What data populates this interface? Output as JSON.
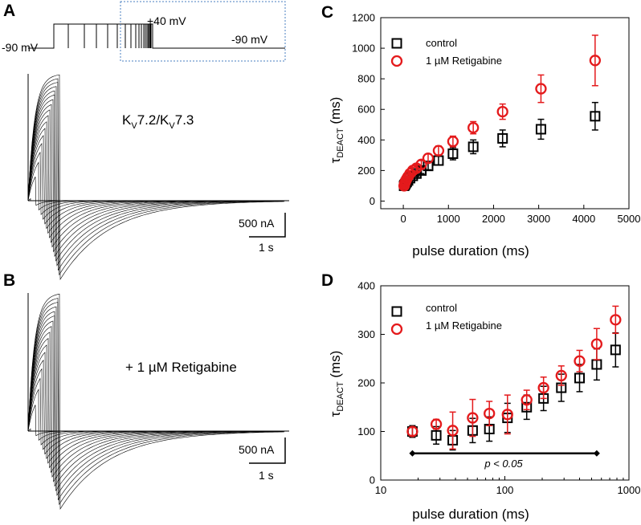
{
  "panels": {
    "a": {
      "letter": "A",
      "cell_line": "KV7.2/KV7.3",
      "cell_base1": "K",
      "cell_sub1": "V",
      "cell_mid": "7.2/K",
      "cell_sub2": "V",
      "cell_end": "7.3"
    },
    "b": {
      "letter": "B",
      "condition": "+ 1 µM Retigabine"
    },
    "c": {
      "letter": "C"
    },
    "d": {
      "letter": "D"
    }
  },
  "protocol": {
    "holding_left": "-90 mV",
    "step": "+40 mV",
    "holding_right": "-90 mV"
  },
  "scalebars": [
    {
      "current": "500 nA",
      "time": "1 s"
    },
    {
      "current": "500 nA",
      "time": "1 s"
    }
  ],
  "colors": {
    "control": "#000000",
    "retigabine": "#e41a1c",
    "inset_box": "#4a7fc1"
  },
  "chart_data": [
    {
      "panel": "C",
      "type": "scatter",
      "xlabel": "pulse duration (ms)",
      "ylabel": "τDEACT (ms)",
      "ylabel_base": "τ",
      "ylabel_sub": "DEACT",
      "ylabel_tail": " (ms)",
      "xlim": [
        -500,
        5000
      ],
      "ylim": [
        -50,
        1200
      ],
      "xticks": [
        0,
        1000,
        2000,
        3000,
        4000,
        5000
      ],
      "yticks": [
        0,
        200,
        400,
        600,
        800,
        1000,
        1200
      ],
      "xscale": "linear",
      "legend_position": "top-left",
      "series": [
        {
          "name": "control",
          "marker": "square",
          "color": "#000000",
          "x": [
            18,
            28,
            40,
            55,
            75,
            105,
            150,
            210,
            290,
            400,
            550,
            780,
            1100,
            1550,
            2200,
            3050,
            4250
          ],
          "y": [
            100,
            105,
            110,
            118,
            125,
            135,
            150,
            165,
            180,
            200,
            230,
            265,
            310,
            355,
            410,
            470,
            555
          ],
          "err": [
            10,
            10,
            10,
            10,
            12,
            12,
            14,
            15,
            18,
            20,
            25,
            30,
            40,
            45,
            55,
            65,
            90
          ]
        },
        {
          "name": "1 µM Retigabine",
          "marker": "circle",
          "color": "#e41a1c",
          "x": [
            18,
            28,
            40,
            55,
            75,
            105,
            150,
            210,
            290,
            400,
            550,
            780,
            1100,
            1550,
            2200,
            3050,
            4250
          ],
          "y": [
            100,
            112,
            122,
            132,
            145,
            160,
            180,
            200,
            215,
            240,
            280,
            330,
            390,
            480,
            585,
            735,
            920
          ],
          "err": [
            10,
            10,
            12,
            12,
            14,
            15,
            18,
            20,
            20,
            25,
            28,
            30,
            35,
            40,
            50,
            90,
            165
          ]
        }
      ]
    },
    {
      "panel": "D",
      "type": "scatter",
      "xlabel": "pulse duration (ms)",
      "ylabel": "τDEACT (ms)",
      "ylabel_base": "τ",
      "ylabel_sub": "DEACT",
      "ylabel_tail": " (ms)",
      "xlim": [
        10,
        1000
      ],
      "ylim": [
        0,
        400
      ],
      "xticks": [
        10,
        100,
        1000
      ],
      "yticks": [
        0,
        100,
        200,
        300,
        400
      ],
      "xscale": "log",
      "legend_position": "top-left",
      "significance": {
        "label": "p < 0.05",
        "from": 18,
        "to": 550,
        "y": 55
      },
      "series": [
        {
          "name": "control",
          "marker": "square",
          "color": "#000000",
          "x": [
            18,
            28,
            38,
            55,
            75,
            105,
            150,
            205,
            285,
            400,
            550,
            780
          ],
          "y": [
            100,
            92,
            82,
            102,
            105,
            128,
            150,
            168,
            190,
            210,
            238,
            268
          ],
          "err": [
            12,
            18,
            20,
            25,
            25,
            30,
            25,
            25,
            28,
            28,
            32,
            35
          ]
        },
        {
          "name": "1 µM Retigabine",
          "marker": "circle",
          "color": "#e41a1c",
          "x": [
            18,
            28,
            38,
            55,
            75,
            105,
            150,
            205,
            285,
            400,
            550,
            780
          ],
          "y": [
            100,
            115,
            102,
            128,
            137,
            135,
            165,
            190,
            215,
            245,
            280,
            330
          ],
          "err": [
            8,
            10,
            38,
            38,
            25,
            40,
            20,
            22,
            20,
            22,
            32,
            28
          ]
        }
      ]
    }
  ]
}
